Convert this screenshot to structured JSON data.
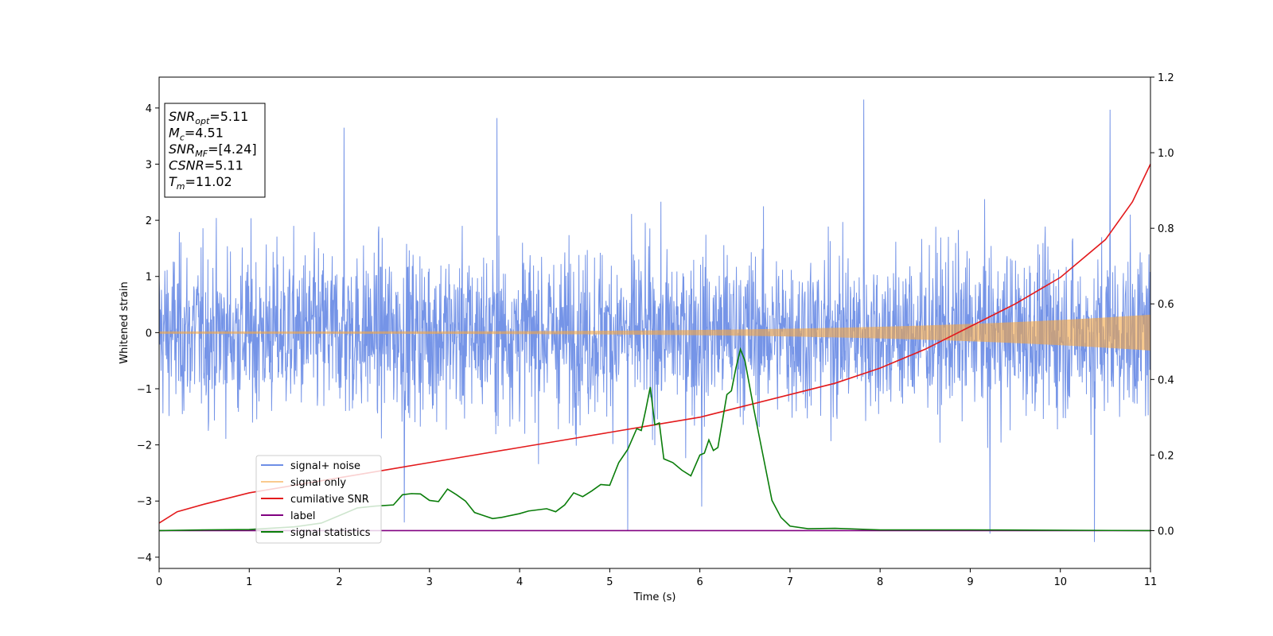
{
  "chart_data": {
    "type": "line",
    "xlabel": "Time (s)",
    "ylabel": "Whitened strain",
    "xlim": [
      0,
      11
    ],
    "ylim": [
      -4.2,
      4.55
    ],
    "y2lim": [
      -0.1,
      1.2
    ],
    "x_ticks": [
      0,
      1,
      2,
      3,
      4,
      5,
      6,
      7,
      8,
      9,
      10,
      11
    ],
    "y_ticks": [
      -4,
      -3,
      -2,
      -1,
      0,
      1,
      2,
      3,
      4
    ],
    "y2_ticks": [
      "0.0",
      "0.2",
      "0.4",
      "0.6",
      "0.8",
      "1.0",
      "1.2"
    ],
    "legend_position": "lower-left",
    "info_box": [
      {
        "main": "SNR",
        "sub": "opt",
        "value": "=5.11"
      },
      {
        "main": "M",
        "sub": "c",
        "value": "=4.51"
      },
      {
        "main": "SNR",
        "sub": "MF",
        "value": "=[4.24]"
      },
      {
        "main": "CSNR",
        "sub": "",
        "value": "=5.11"
      },
      {
        "main": "T",
        "sub": "m",
        "value": "=11.02"
      }
    ],
    "series": [
      {
        "name": "signal+ noise",
        "color": "#6e8ee6",
        "axis": "left",
        "kind": "noise",
        "noise_std": 0.95,
        "noise_peaks": [
          {
            "x": 2.05,
            "y": 3.65
          },
          {
            "x": 3.75,
            "y": 3.82
          },
          {
            "x": 7.82,
            "y": 4.15
          },
          {
            "x": 10.55,
            "y": 3.97
          },
          {
            "x": 5.2,
            "y": -3.52
          },
          {
            "x": 9.22,
            "y": -3.58
          },
          {
            "x": 10.38,
            "y": -3.73
          },
          {
            "x": 2.72,
            "y": -3.38
          },
          {
            "x": 6.02,
            "y": -3.1
          }
        ]
      },
      {
        "name": "signal only",
        "color": "#f5a742",
        "axis": "left",
        "kind": "chirp",
        "amplitude_start": 0.02,
        "amplitude_end": 0.32
      },
      {
        "name": "cumilative SNR",
        "color": "#e31a1c",
        "axis": "right",
        "kind": "line",
        "points": [
          [
            0.0,
            0.02
          ],
          [
            0.2,
            0.05
          ],
          [
            0.5,
            0.07
          ],
          [
            1.0,
            0.1
          ],
          [
            1.5,
            0.12
          ],
          [
            2.0,
            0.14
          ],
          [
            2.5,
            0.16
          ],
          [
            3.0,
            0.18
          ],
          [
            3.5,
            0.2
          ],
          [
            4.0,
            0.22
          ],
          [
            4.5,
            0.24
          ],
          [
            5.0,
            0.26
          ],
          [
            5.5,
            0.28
          ],
          [
            6.0,
            0.3
          ],
          [
            6.5,
            0.33
          ],
          [
            7.0,
            0.36
          ],
          [
            7.5,
            0.39
          ],
          [
            8.0,
            0.43
          ],
          [
            8.5,
            0.48
          ],
          [
            9.0,
            0.54
          ],
          [
            9.5,
            0.6
          ],
          [
            10.0,
            0.67
          ],
          [
            10.5,
            0.77
          ],
          [
            10.8,
            0.87
          ],
          [
            11.0,
            0.97
          ]
        ]
      },
      {
        "name": "label",
        "color": "#800080",
        "axis": "right",
        "kind": "line",
        "points": [
          [
            0,
            0.0
          ],
          [
            11,
            0.0
          ]
        ]
      },
      {
        "name": "signal statistics",
        "color": "#0a7d0a",
        "axis": "right",
        "kind": "line",
        "points": [
          [
            0.0,
            0.0
          ],
          [
            0.5,
            0.002
          ],
          [
            1.0,
            0.003
          ],
          [
            1.5,
            0.01
          ],
          [
            1.8,
            0.02
          ],
          [
            2.0,
            0.04
          ],
          [
            2.2,
            0.06
          ],
          [
            2.4,
            0.065
          ],
          [
            2.6,
            0.068
          ],
          [
            2.7,
            0.095
          ],
          [
            2.8,
            0.098
          ],
          [
            2.9,
            0.097
          ],
          [
            3.0,
            0.08
          ],
          [
            3.1,
            0.077
          ],
          [
            3.2,
            0.11
          ],
          [
            3.3,
            0.095
          ],
          [
            3.4,
            0.078
          ],
          [
            3.5,
            0.048
          ],
          [
            3.6,
            0.04
          ],
          [
            3.7,
            0.032
          ],
          [
            3.8,
            0.035
          ],
          [
            4.0,
            0.045
          ],
          [
            4.1,
            0.052
          ],
          [
            4.3,
            0.058
          ],
          [
            4.4,
            0.05
          ],
          [
            4.5,
            0.068
          ],
          [
            4.6,
            0.1
          ],
          [
            4.7,
            0.09
          ],
          [
            4.8,
            0.105
          ],
          [
            4.9,
            0.122
          ],
          [
            5.0,
            0.12
          ],
          [
            5.1,
            0.18
          ],
          [
            5.2,
            0.215
          ],
          [
            5.3,
            0.27
          ],
          [
            5.35,
            0.265
          ],
          [
            5.4,
            0.32
          ],
          [
            5.45,
            0.38
          ],
          [
            5.5,
            0.28
          ],
          [
            5.55,
            0.285
          ],
          [
            5.6,
            0.19
          ],
          [
            5.7,
            0.18
          ],
          [
            5.8,
            0.16
          ],
          [
            5.9,
            0.145
          ],
          [
            6.0,
            0.2
          ],
          [
            6.05,
            0.205
          ],
          [
            6.1,
            0.24
          ],
          [
            6.15,
            0.212
          ],
          [
            6.2,
            0.22
          ],
          [
            6.3,
            0.36
          ],
          [
            6.35,
            0.37
          ],
          [
            6.4,
            0.43
          ],
          [
            6.45,
            0.48
          ],
          [
            6.5,
            0.45
          ],
          [
            6.6,
            0.32
          ],
          [
            6.7,
            0.2
          ],
          [
            6.8,
            0.08
          ],
          [
            6.9,
            0.035
          ],
          [
            7.0,
            0.012
          ],
          [
            7.2,
            0.005
          ],
          [
            7.5,
            0.006
          ],
          [
            8.0,
            0.002
          ],
          [
            9.0,
            0.002
          ],
          [
            11.0,
            0.0
          ]
        ]
      }
    ]
  }
}
